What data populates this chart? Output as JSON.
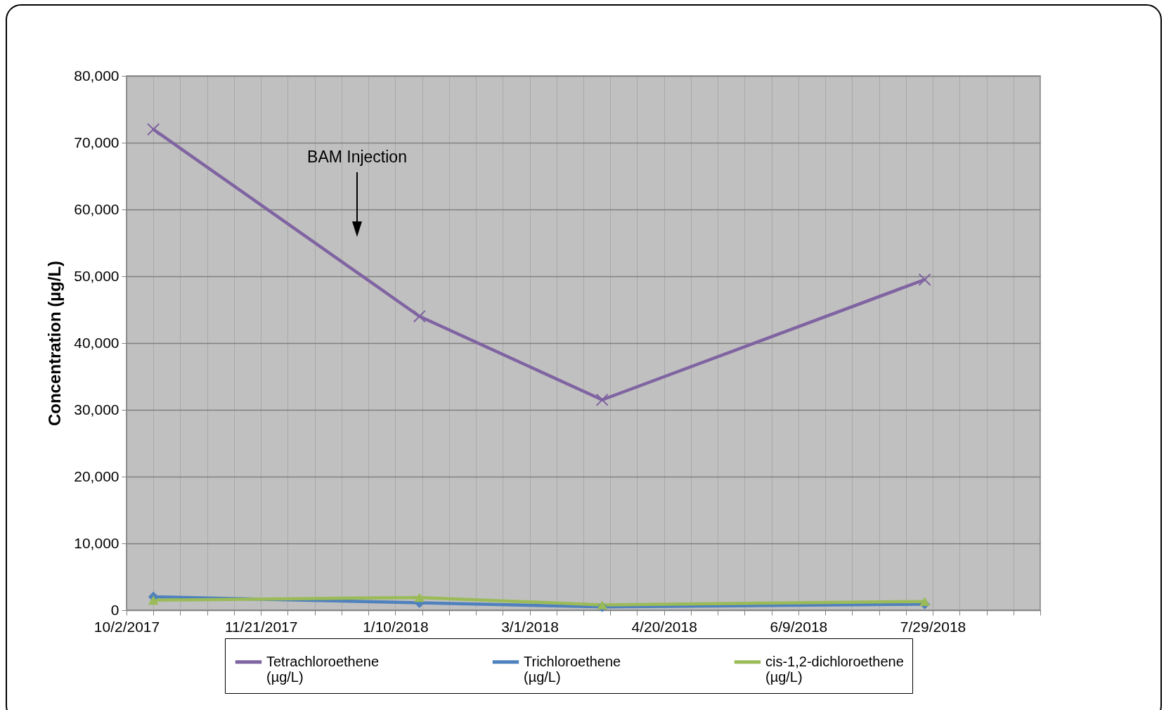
{
  "chart_data": {
    "type": "line",
    "ylabel": "Concentration (µg/L)",
    "x": [
      "2017-10-12",
      "2018-01-19",
      "2018-03-28",
      "2018-07-26"
    ],
    "series": [
      {
        "name": "Tetrachloroethene (µg/L)",
        "color": "#8064a2",
        "marker": "cross",
        "values": [
          72000,
          44000,
          31500,
          49500
        ]
      },
      {
        "name": "Trichloroethene (µg/L)",
        "color": "#4f81bd",
        "marker": "diamond",
        "values": [
          2000,
          1100,
          500,
          900
        ]
      },
      {
        "name": "cis-1,2-dichloroethene (µg/L)",
        "color": "#9bbb59",
        "marker": "triangle",
        "values": [
          1500,
          1900,
          800,
          1300
        ]
      }
    ],
    "xlim": [
      "2017-10-02",
      "2018-09-07"
    ],
    "xticks": [
      {
        "value": "2017-10-02",
        "label": "10/2/2017"
      },
      {
        "value": "2017-10-12",
        "label": null
      },
      {
        "value": "2017-10-22",
        "label": null
      },
      {
        "value": "2017-11-01",
        "label": null
      },
      {
        "value": "2017-11-11",
        "label": null
      },
      {
        "value": "2017-11-21",
        "label": "11/21/2017"
      },
      {
        "value": "2017-12-01",
        "label": null
      },
      {
        "value": "2017-12-11",
        "label": null
      },
      {
        "value": "2017-12-21",
        "label": null
      },
      {
        "value": "2017-12-31",
        "label": null
      },
      {
        "value": "2018-01-10",
        "label": "1/10/2018"
      },
      {
        "value": "2018-01-20",
        "label": null
      },
      {
        "value": "2018-01-30",
        "label": null
      },
      {
        "value": "2018-02-09",
        "label": null
      },
      {
        "value": "2018-02-19",
        "label": null
      },
      {
        "value": "2018-03-01",
        "label": "3/1/2018"
      },
      {
        "value": "2018-03-11",
        "label": null
      },
      {
        "value": "2018-03-21",
        "label": null
      },
      {
        "value": "2018-03-31",
        "label": null
      },
      {
        "value": "2018-04-10",
        "label": null
      },
      {
        "value": "2018-04-20",
        "label": "4/20/2018"
      },
      {
        "value": "2018-04-30",
        "label": null
      },
      {
        "value": "2018-05-10",
        "label": null
      },
      {
        "value": "2018-05-20",
        "label": null
      },
      {
        "value": "2018-05-30",
        "label": null
      },
      {
        "value": "2018-06-09",
        "label": "6/9/2018"
      },
      {
        "value": "2018-06-19",
        "label": null
      },
      {
        "value": "2018-06-29",
        "label": null
      },
      {
        "value": "2018-07-09",
        "label": null
      },
      {
        "value": "2018-07-19",
        "label": null
      },
      {
        "value": "2018-07-29",
        "label": "7/29/2018"
      },
      {
        "value": "2018-08-08",
        "label": null
      },
      {
        "value": "2018-08-18",
        "label": null
      },
      {
        "value": "2018-08-28",
        "label": null
      },
      {
        "value": "2018-09-07",
        "label": null
      }
    ],
    "ylim": [
      0,
      80000
    ],
    "yticks": [
      0,
      {
        "value": 10000,
        "label": "10,000"
      },
      {
        "value": 20000,
        "label": "20,000"
      },
      {
        "value": 30000,
        "label": "30,000"
      },
      {
        "value": 40000,
        "label": "40,000"
      },
      {
        "value": 50000,
        "label": "50,000"
      },
      {
        "value": 60000,
        "label": "60,000"
      },
      {
        "value": 70000,
        "label": "70,000"
      },
      {
        "value": 80000,
        "label": "80,000"
      }
    ],
    "annotations": [
      "BAM Injection"
    ],
    "grid": true,
    "legend": "bottom",
    "line_style": "solid"
  }
}
